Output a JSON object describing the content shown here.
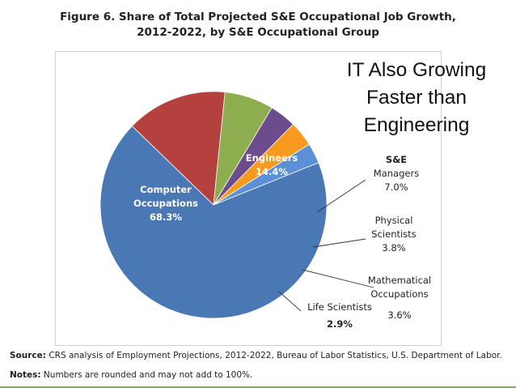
{
  "figure": {
    "title_line1": "Figure 6. Share of Total Projected S&E Occupational Job Growth,",
    "title_line2": "2012-2022, by S&E Occupational Group"
  },
  "overlay": {
    "line1": "IT Also Growing",
    "line2": "Faster than",
    "line3": "Engineering"
  },
  "footnotes": {
    "source_label": "Source:",
    "source_text": " CRS analysis of Employment Projections, 2012-2022, Bureau of Labor Statistics, U.S. Department of Labor.",
    "notes_label": "Notes:",
    "notes_text": " Numbers are rounded and may not add to 100%."
  },
  "chart_data": {
    "type": "pie",
    "title": "Share of Total Projected S&E Occupational Job Growth, 2012-2022, by S&E Occupational Group",
    "unit": "%",
    "slices": [
      {
        "label": "Engineers",
        "label_lines": [
          "Engineers"
        ],
        "value": 14.4,
        "display": "14.4%",
        "color": "#b5413f"
      },
      {
        "label": "S&E Managers",
        "label_lines": [
          "S&E",
          "Managers"
        ],
        "value": 7.0,
        "display": "7.0%",
        "color": "#8ead4f"
      },
      {
        "label": "Physical Scientists",
        "label_lines": [
          "Physical",
          "Scientists"
        ],
        "value": 3.8,
        "display": "3.8%",
        "color": "#6c4c8c"
      },
      {
        "label": "Mathematical Occupations",
        "label_lines": [
          "Mathematical",
          "Occupations"
        ],
        "value": 3.6,
        "display": "3.6%",
        "color": "#f79a1d"
      },
      {
        "label": "Life Scientists",
        "label_lines": [
          "Life Scientists"
        ],
        "value": 2.9,
        "display": "2.9%",
        "color": "#5b8fd6"
      },
      {
        "label": "Computer Occupations",
        "label_lines": [
          "Computer",
          "Occupations"
        ],
        "value": 68.3,
        "display": "68.3%",
        "color": "#4a78b4"
      }
    ]
  }
}
